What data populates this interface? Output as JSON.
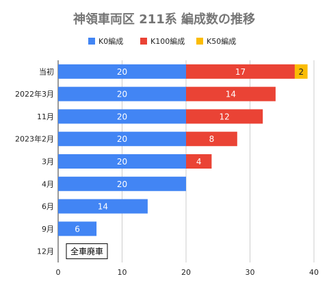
{
  "chart_data": {
    "type": "bar",
    "orientation": "horizontal",
    "stacked": true,
    "title": "神領車両区 211系 編成数の推移",
    "categories": [
      "当初",
      "2022年3月",
      "11月",
      "2023年2月",
      "3月",
      "4月",
      "6月",
      "9月",
      "12月"
    ],
    "series": [
      {
        "name": "K0編成",
        "color": "#4285f4",
        "values": [
          20,
          20,
          20,
          20,
          20,
          20,
          14,
          6,
          0
        ]
      },
      {
        "name": "K100編成",
        "color": "#ea4335",
        "values": [
          17,
          14,
          12,
          8,
          4,
          0,
          0,
          0,
          0
        ]
      },
      {
        "name": "K50編成",
        "color": "#fbbc04",
        "values": [
          2,
          0,
          0,
          0,
          0,
          0,
          0,
          0,
          0
        ]
      }
    ],
    "xlim": [
      0,
      40
    ],
    "xticks": [
      0,
      10,
      20,
      30,
      40
    ],
    "grid": true,
    "legend_position": "top",
    "annotation": {
      "category": "12月",
      "text": "全車廃車"
    }
  }
}
